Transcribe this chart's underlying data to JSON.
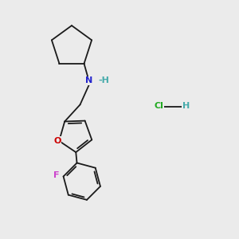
{
  "background_color": "#ebebeb",
  "figsize": [
    3.0,
    3.0
  ],
  "dpi": 100,
  "bond_color": "#1a1a1a",
  "bond_lw": 1.3,
  "N_color": "#2222cc",
  "O_color": "#cc0000",
  "F_color": "#cc44cc",
  "Cl_color": "#22aa22",
  "H_color": "#44aaaa",
  "font_size": 8.0,
  "xlim": [
    0,
    10
  ],
  "ylim": [
    0,
    10
  ]
}
